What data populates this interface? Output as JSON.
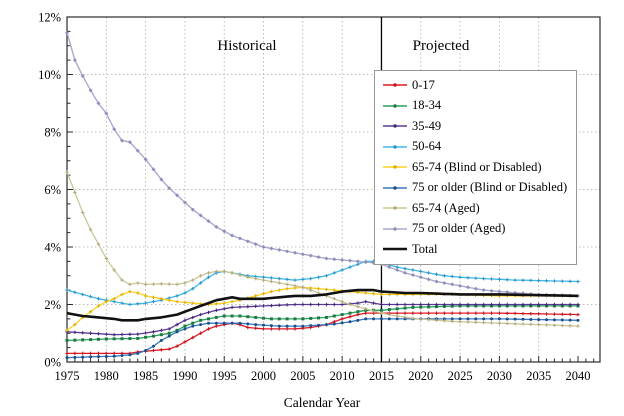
{
  "chart_data": {
    "type": "line",
    "title": "",
    "xlabel": "Calendar Year",
    "ylabel": "",
    "x_range": [
      1975,
      2040
    ],
    "ylim_percent": [
      0,
      12
    ],
    "grid": true,
    "legend_position": "upper right",
    "region_labels": {
      "historical": "Historical",
      "projected": "Projected"
    },
    "divider_year": 2015,
    "x_ticks": {
      "years": [
        1975,
        1980,
        1985,
        1990,
        1995,
        2000,
        2005,
        2010,
        2015,
        2020,
        2025,
        2030,
        2035,
        2040
      ],
      "labels": [
        "1975",
        "1980",
        "1985",
        "1990",
        "1995",
        "2000",
        "2005",
        "2010",
        "2015",
        "2020",
        "2025",
        "2030",
        "2035",
        "2040"
      ]
    },
    "y_ticks": {
      "values": [
        0,
        2,
        4,
        6,
        8,
        10,
        12
      ],
      "labels": [
        "0%",
        "2%",
        "4%",
        "6%",
        "8%",
        "10%",
        "12%"
      ]
    },
    "series": [
      {
        "name": "0-17",
        "color": "#e01a25",
        "marker_color": "#c8101b",
        "marker": "plus",
        "line_width": 1.3,
        "points": [
          [
            1975,
            0.3
          ],
          [
            1980,
            0.3
          ],
          [
            1983,
            0.3
          ],
          [
            1984,
            0.35
          ],
          [
            1986,
            0.4
          ],
          [
            1988,
            0.45
          ],
          [
            1989,
            0.55
          ],
          [
            1990,
            0.7
          ],
          [
            1991,
            0.85
          ],
          [
            1992,
            1.0
          ],
          [
            1993,
            1.15
          ],
          [
            1994,
            1.25
          ],
          [
            1995,
            1.3
          ],
          [
            1996,
            1.35
          ],
          [
            1997,
            1.3
          ],
          [
            1998,
            1.2
          ],
          [
            2000,
            1.15
          ],
          [
            2004,
            1.15
          ],
          [
            2006,
            1.2
          ],
          [
            2008,
            1.3
          ],
          [
            2010,
            1.5
          ],
          [
            2012,
            1.65
          ],
          [
            2013,
            1.7
          ],
          [
            2015,
            1.7
          ],
          [
            2020,
            1.7
          ],
          [
            2030,
            1.7
          ],
          [
            2040,
            1.65
          ]
        ]
      },
      {
        "name": "18-34",
        "color": "#2ba05c",
        "marker_color": "#1d7a44",
        "marker": "square",
        "line_width": 1.3,
        "points": [
          [
            1975,
            0.75
          ],
          [
            1980,
            0.8
          ],
          [
            1984,
            0.82
          ],
          [
            1986,
            0.9
          ],
          [
            1988,
            1.0
          ],
          [
            1989,
            1.1
          ],
          [
            1990,
            1.25
          ],
          [
            1992,
            1.45
          ],
          [
            1994,
            1.55
          ],
          [
            1995,
            1.6
          ],
          [
            1997,
            1.6
          ],
          [
            1999,
            1.55
          ],
          [
            2001,
            1.5
          ],
          [
            2005,
            1.5
          ],
          [
            2008,
            1.55
          ],
          [
            2010,
            1.65
          ],
          [
            2012,
            1.75
          ],
          [
            2013,
            1.8
          ],
          [
            2015,
            1.8
          ],
          [
            2017,
            1.85
          ],
          [
            2019,
            1.9
          ],
          [
            2025,
            1.95
          ],
          [
            2040,
            1.95
          ]
        ]
      },
      {
        "name": "35-49",
        "color": "#5c3a99",
        "marker_color": "#46287a",
        "marker": "plus",
        "line_width": 1.3,
        "points": [
          [
            1975,
            1.05
          ],
          [
            1978,
            1.0
          ],
          [
            1981,
            0.95
          ],
          [
            1984,
            0.97
          ],
          [
            1986,
            1.05
          ],
          [
            1988,
            1.15
          ],
          [
            1989,
            1.3
          ],
          [
            1990,
            1.45
          ],
          [
            1991,
            1.55
          ],
          [
            1992,
            1.65
          ],
          [
            1994,
            1.8
          ],
          [
            1996,
            1.9
          ],
          [
            2000,
            1.95
          ],
          [
            2004,
            2.0
          ],
          [
            2010,
            2.0
          ],
          [
            2012,
            2.05
          ],
          [
            2013,
            2.1
          ],
          [
            2014,
            2.05
          ],
          [
            2015,
            2.0
          ],
          [
            2020,
            2.0
          ],
          [
            2040,
            2.0
          ]
        ]
      },
      {
        "name": "50-64",
        "color": "#45b7e6",
        "marker_color": "#2596c7",
        "marker": "plus",
        "line_width": 1.3,
        "points": [
          [
            1975,
            2.5
          ],
          [
            1977,
            2.35
          ],
          [
            1979,
            2.2
          ],
          [
            1981,
            2.1
          ],
          [
            1983,
            2.0
          ],
          [
            1985,
            2.05
          ],
          [
            1987,
            2.15
          ],
          [
            1989,
            2.3
          ],
          [
            1990,
            2.4
          ],
          [
            1991,
            2.55
          ],
          [
            1992,
            2.75
          ],
          [
            1993,
            2.95
          ],
          [
            1994,
            3.1
          ],
          [
            1995,
            3.15
          ],
          [
            1996,
            3.1
          ],
          [
            1998,
            3.0
          ],
          [
            2000,
            2.95
          ],
          [
            2002,
            2.9
          ],
          [
            2004,
            2.85
          ],
          [
            2006,
            2.9
          ],
          [
            2008,
            3.0
          ],
          [
            2010,
            3.2
          ],
          [
            2012,
            3.4
          ],
          [
            2013,
            3.5
          ],
          [
            2014,
            3.5
          ],
          [
            2015,
            3.45
          ],
          [
            2017,
            3.3
          ],
          [
            2019,
            3.2
          ],
          [
            2021,
            3.1
          ],
          [
            2023,
            3.0
          ],
          [
            2025,
            2.95
          ],
          [
            2028,
            2.9
          ],
          [
            2032,
            2.85
          ],
          [
            2040,
            2.8
          ]
        ]
      },
      {
        "name": "65-74 (Blind or Disabled)",
        "color": "#ffd024",
        "marker_color": "#e0ae00",
        "marker": "plus",
        "line_width": 1.3,
        "points": [
          [
            1975,
            1.1
          ],
          [
            1976,
            1.3
          ],
          [
            1977,
            1.55
          ],
          [
            1978,
            1.75
          ],
          [
            1979,
            1.95
          ],
          [
            1980,
            2.1
          ],
          [
            1981,
            2.2
          ],
          [
            1982,
            2.35
          ],
          [
            1983,
            2.45
          ],
          [
            1984,
            2.4
          ],
          [
            1985,
            2.3
          ],
          [
            1987,
            2.2
          ],
          [
            1989,
            2.1
          ],
          [
            1991,
            2.05
          ],
          [
            1993,
            2.0
          ],
          [
            1995,
            2.05
          ],
          [
            1997,
            2.15
          ],
          [
            1999,
            2.3
          ],
          [
            2001,
            2.45
          ],
          [
            2003,
            2.55
          ],
          [
            2005,
            2.6
          ],
          [
            2007,
            2.55
          ],
          [
            2009,
            2.5
          ],
          [
            2011,
            2.45
          ],
          [
            2013,
            2.4
          ],
          [
            2015,
            2.35
          ],
          [
            2020,
            2.35
          ],
          [
            2025,
            2.35
          ],
          [
            2030,
            2.3
          ],
          [
            2040,
            2.3
          ]
        ]
      },
      {
        "name": "75 or older (Blind or Disabled)",
        "color": "#3878bf",
        "marker_color": "#1d4e89",
        "marker": "circle",
        "line_width": 1.3,
        "points": [
          [
            1975,
            0.15
          ],
          [
            1978,
            0.18
          ],
          [
            1981,
            0.2
          ],
          [
            1983,
            0.25
          ],
          [
            1984,
            0.3
          ],
          [
            1985,
            0.4
          ],
          [
            1986,
            0.55
          ],
          [
            1987,
            0.75
          ],
          [
            1988,
            0.9
          ],
          [
            1989,
            1.05
          ],
          [
            1990,
            1.15
          ],
          [
            1991,
            1.25
          ],
          [
            1992,
            1.3
          ],
          [
            1993,
            1.35
          ],
          [
            1995,
            1.35
          ],
          [
            1997,
            1.35
          ],
          [
            1999,
            1.3
          ],
          [
            2002,
            1.25
          ],
          [
            2005,
            1.25
          ],
          [
            2007,
            1.28
          ],
          [
            2009,
            1.32
          ],
          [
            2011,
            1.4
          ],
          [
            2013,
            1.5
          ],
          [
            2015,
            1.5
          ],
          [
            2020,
            1.5
          ],
          [
            2030,
            1.5
          ],
          [
            2040,
            1.45
          ]
        ]
      },
      {
        "name": "65-74 (Aged)",
        "color": "#cbc79a",
        "marker_color": "#b1ab79",
        "marker": "plus",
        "line_width": 1.3,
        "points": [
          [
            1975,
            6.6
          ],
          [
            1976,
            5.9
          ],
          [
            1977,
            5.2
          ],
          [
            1978,
            4.6
          ],
          [
            1979,
            4.1
          ],
          [
            1980,
            3.6
          ],
          [
            1981,
            3.2
          ],
          [
            1982,
            2.85
          ],
          [
            1983,
            2.7
          ],
          [
            1984,
            2.75
          ],
          [
            1985,
            2.7
          ],
          [
            1987,
            2.72
          ],
          [
            1989,
            2.7
          ],
          [
            1990,
            2.75
          ],
          [
            1991,
            2.85
          ],
          [
            1992,
            3.0
          ],
          [
            1993,
            3.1
          ],
          [
            1994,
            3.15
          ],
          [
            1995,
            3.15
          ],
          [
            1996,
            3.1
          ],
          [
            1998,
            2.95
          ],
          [
            2000,
            2.85
          ],
          [
            2002,
            2.75
          ],
          [
            2004,
            2.65
          ],
          [
            2005,
            2.6
          ],
          [
            2007,
            2.4
          ],
          [
            2009,
            2.2
          ],
          [
            2011,
            2.0
          ],
          [
            2013,
            1.85
          ],
          [
            2015,
            1.7
          ],
          [
            2017,
            1.6
          ],
          [
            2019,
            1.52
          ],
          [
            2022,
            1.45
          ],
          [
            2025,
            1.4
          ],
          [
            2030,
            1.35
          ],
          [
            2035,
            1.3
          ],
          [
            2040,
            1.25
          ]
        ]
      },
      {
        "name": "75 or older (Aged)",
        "color": "#a9a9d0",
        "marker_color": "#8f8fbb",
        "marker": "diamond",
        "line_width": 1.4,
        "points": [
          [
            1975,
            11.45
          ],
          [
            1976,
            10.5
          ],
          [
            1977,
            9.95
          ],
          [
            1978,
            9.45
          ],
          [
            1979,
            9.0
          ],
          [
            1980,
            8.65
          ],
          [
            1981,
            8.1
          ],
          [
            1982,
            7.7
          ],
          [
            1983,
            7.65
          ],
          [
            1984,
            7.35
          ],
          [
            1985,
            7.05
          ],
          [
            1986,
            6.7
          ],
          [
            1987,
            6.35
          ],
          [
            1988,
            6.05
          ],
          [
            1989,
            5.8
          ],
          [
            1990,
            5.55
          ],
          [
            1991,
            5.3
          ],
          [
            1992,
            5.1
          ],
          [
            1993,
            4.9
          ],
          [
            1994,
            4.7
          ],
          [
            1995,
            4.55
          ],
          [
            1996,
            4.4
          ],
          [
            1997,
            4.3
          ],
          [
            1998,
            4.2
          ],
          [
            1999,
            4.1
          ],
          [
            2000,
            4.0
          ],
          [
            2002,
            3.9
          ],
          [
            2004,
            3.8
          ],
          [
            2006,
            3.7
          ],
          [
            2008,
            3.6
          ],
          [
            2010,
            3.55
          ],
          [
            2012,
            3.5
          ],
          [
            2014,
            3.45
          ],
          [
            2015,
            3.4
          ],
          [
            2016,
            3.3
          ],
          [
            2018,
            3.1
          ],
          [
            2020,
            2.95
          ],
          [
            2022,
            2.8
          ],
          [
            2025,
            2.65
          ],
          [
            2028,
            2.5
          ],
          [
            2030,
            2.45
          ],
          [
            2035,
            2.35
          ],
          [
            2040,
            2.3
          ]
        ]
      },
      {
        "name": "Total",
        "color": "#111111",
        "marker_color": "#111111",
        "marker": "none",
        "line_width": 2.6,
        "points": [
          [
            1975,
            1.7
          ],
          [
            1977,
            1.6
          ],
          [
            1979,
            1.55
          ],
          [
            1981,
            1.5
          ],
          [
            1982,
            1.45
          ],
          [
            1984,
            1.45
          ],
          [
            1985,
            1.5
          ],
          [
            1987,
            1.55
          ],
          [
            1988,
            1.6
          ],
          [
            1989,
            1.65
          ],
          [
            1990,
            1.75
          ],
          [
            1991,
            1.85
          ],
          [
            1992,
            1.95
          ],
          [
            1993,
            2.05
          ],
          [
            1994,
            2.15
          ],
          [
            1995,
            2.2
          ],
          [
            1996,
            2.25
          ],
          [
            1997,
            2.2
          ],
          [
            2000,
            2.2
          ],
          [
            2002,
            2.25
          ],
          [
            2004,
            2.3
          ],
          [
            2006,
            2.3
          ],
          [
            2008,
            2.35
          ],
          [
            2010,
            2.45
          ],
          [
            2012,
            2.5
          ],
          [
            2013,
            2.5
          ],
          [
            2014,
            2.5
          ],
          [
            2015,
            2.45
          ],
          [
            2018,
            2.4
          ],
          [
            2020,
            2.4
          ],
          [
            2025,
            2.35
          ],
          [
            2030,
            2.35
          ],
          [
            2040,
            2.3
          ]
        ]
      }
    ]
  }
}
